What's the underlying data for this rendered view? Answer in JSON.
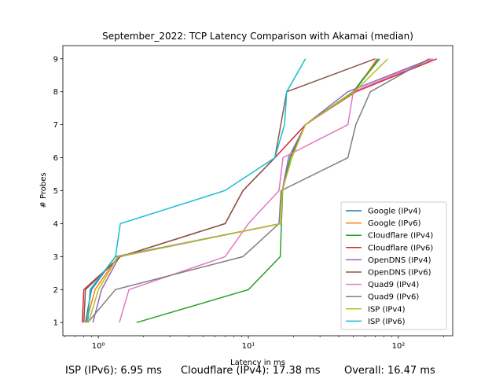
{
  "chart_data": {
    "type": "line",
    "title": "September_2022: TCP Latency Comparison with Akamai (median)",
    "xlabel": "Latency in ms",
    "ylabel": "# Probes",
    "xscale": "log",
    "xlim": [
      0.58,
      230
    ],
    "ylim": [
      0.6,
      9.4
    ],
    "xticks": [
      1,
      10,
      100
    ],
    "xtick_labels": [
      "10⁰",
      "10¹",
      "10²"
    ],
    "yticks": [
      1,
      2,
      3,
      4,
      5,
      6,
      7,
      8,
      9
    ],
    "grid": false,
    "legend": "lower-right",
    "series": [
      {
        "name": "Google (IPv4)",
        "color": "#1f77b4",
        "points": [
          [
            0.82,
            1
          ],
          [
            0.9,
            2
          ],
          [
            1.3,
            3
          ],
          [
            16.5,
            4
          ],
          [
            16.8,
            5
          ],
          [
            19,
            6
          ],
          [
            24,
            7
          ],
          [
            50,
            8
          ],
          [
            73,
            9
          ]
        ]
      },
      {
        "name": "Google (IPv6)",
        "color": "#ff7f0e",
        "points": [
          [
            0.83,
            1
          ],
          [
            0.95,
            2
          ],
          [
            1.35,
            3
          ],
          [
            16.5,
            4
          ],
          [
            16.8,
            5
          ],
          [
            19,
            6
          ],
          [
            24,
            7
          ],
          [
            51,
            8
          ],
          [
            72,
            9
          ]
        ]
      },
      {
        "name": "Cloudflare (IPv4)",
        "color": "#2ca02c",
        "points": [
          [
            1.8,
            1
          ],
          [
            10,
            2
          ],
          [
            16.3,
            3
          ],
          [
            16.6,
            4
          ],
          [
            16.9,
            5
          ],
          [
            19,
            6
          ],
          [
            24,
            7
          ],
          [
            50,
            8
          ],
          [
            75,
            9
          ]
        ]
      },
      {
        "name": "Cloudflare (IPv6)",
        "color": "#d62728",
        "points": [
          [
            0.78,
            1
          ],
          [
            0.8,
            2
          ],
          [
            1.4,
            3
          ],
          [
            7,
            4
          ],
          [
            9.2,
            5
          ],
          [
            15,
            6
          ],
          [
            24,
            7
          ],
          [
            52,
            8
          ],
          [
            180,
            9
          ]
        ]
      },
      {
        "name": "OpenDNS (IPv4)",
        "color": "#9467bd",
        "points": [
          [
            0.92,
            1
          ],
          [
            1.05,
            2
          ],
          [
            1.38,
            3
          ],
          [
            16.4,
            4
          ],
          [
            16.8,
            5
          ],
          [
            18.5,
            6
          ],
          [
            24,
            7
          ],
          [
            46,
            8
          ],
          [
            165,
            9
          ]
        ]
      },
      {
        "name": "OpenDNS (IPv6)",
        "color": "#8c564b",
        "points": [
          [
            0.8,
            1
          ],
          [
            0.82,
            2
          ],
          [
            1.4,
            3
          ],
          [
            7,
            4
          ],
          [
            9.2,
            5
          ],
          [
            15,
            6
          ],
          [
            18,
            8
          ],
          [
            70,
            9
          ]
        ]
      },
      {
        "name": "Quad9 (IPv4)",
        "color": "#e377c2",
        "points": [
          [
            1.38,
            1
          ],
          [
            1.6,
            2
          ],
          [
            7,
            3
          ],
          [
            10,
            4
          ],
          [
            16,
            5
          ],
          [
            17,
            6
          ],
          [
            46,
            7
          ],
          [
            50,
            8
          ],
          [
            170,
            9
          ]
        ]
      },
      {
        "name": "Quad9 (IPv6)",
        "color": "#7f7f7f",
        "points": [
          [
            0.85,
            1
          ],
          [
            1.3,
            2
          ],
          [
            9.2,
            3
          ],
          [
            16,
            4
          ],
          [
            16.5,
            5
          ],
          [
            46,
            6
          ],
          [
            52,
            7
          ],
          [
            65,
            8
          ],
          [
            160,
            9
          ]
        ]
      },
      {
        "name": "ISP (IPv4)",
        "color": "#bcbd22",
        "points": [
          [
            0.86,
            1
          ],
          [
            1,
            2
          ],
          [
            1.35,
            3
          ],
          [
            16.5,
            4
          ],
          [
            16.8,
            5
          ],
          [
            19.5,
            6
          ],
          [
            24,
            7
          ],
          [
            51,
            8
          ],
          [
            85,
            9
          ]
        ]
      },
      {
        "name": "ISP (IPv6)",
        "color": "#17becf",
        "points": [
          [
            0.85,
            1
          ],
          [
            0.88,
            2
          ],
          [
            1.3,
            3
          ],
          [
            1.4,
            4
          ],
          [
            6.95,
            5
          ],
          [
            15,
            6
          ],
          [
            17.4,
            7
          ],
          [
            18,
            8
          ],
          [
            24,
            9
          ]
        ]
      }
    ]
  },
  "footer": {
    "item1": "ISP (IPv6): 6.95 ms",
    "item2": "Cloudflare (IPv4): 17.38 ms",
    "item3": "Overall: 16.47 ms"
  }
}
